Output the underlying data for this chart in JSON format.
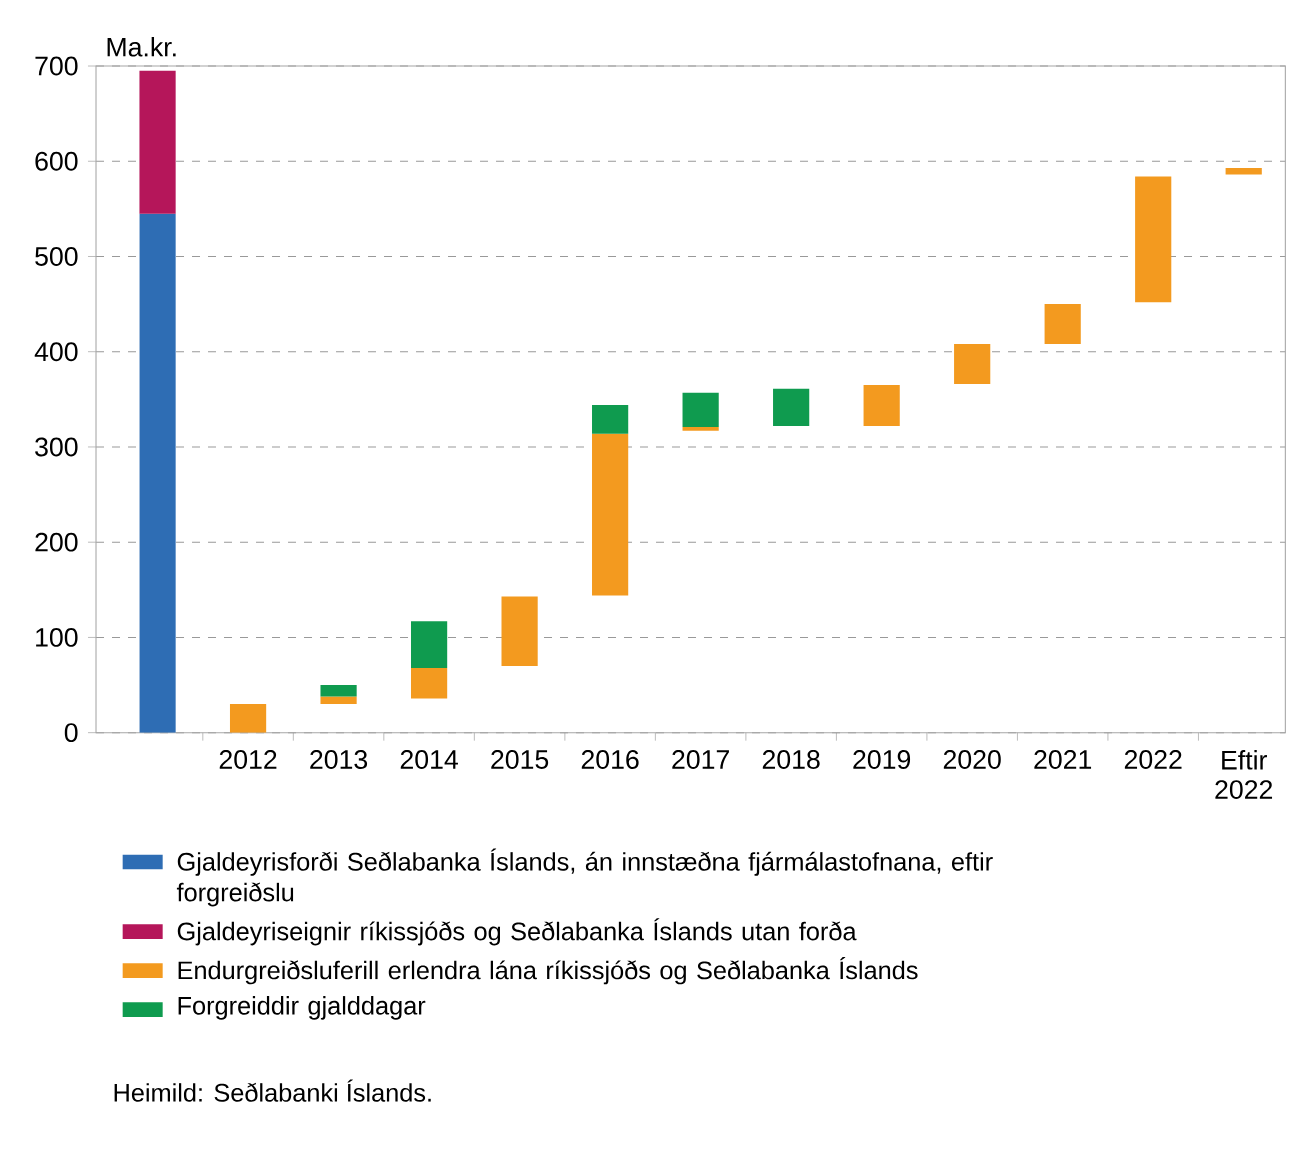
{
  "chart_data": {
    "type": "bar",
    "ylabel": "Ma.kr.",
    "categories": [
      null,
      "2012",
      "2013",
      "2014",
      "2015",
      "2016",
      "2017",
      "2018",
      "2019",
      "2020",
      "2021",
      "2022",
      "Eftir 2022"
    ],
    "series": [
      {
        "name": "Gjaldeyrisforði Seðlabanka Íslands, án innstæðna fjármálastofnana, eftir forgreiðslu",
        "color": "#2e6db4",
        "values": [
          545,
          null,
          null,
          null,
          null,
          null,
          null,
          null,
          null,
          null,
          null,
          null,
          null
        ],
        "base": [
          0,
          null,
          null,
          null,
          null,
          null,
          null,
          null,
          null,
          null,
          null,
          null,
          null
        ]
      },
      {
        "name": "Gjaldeyriseignir ríkissjóðs og Seðlabanka Íslands utan forða",
        "color": "#b5165a",
        "values": [
          150,
          null,
          null,
          null,
          null,
          null,
          null,
          null,
          null,
          null,
          null,
          null,
          null
        ],
        "base": [
          545,
          null,
          null,
          null,
          null,
          null,
          null,
          null,
          null,
          null,
          null,
          null,
          null
        ]
      },
      {
        "name": "Endurgreiðsluferill erlendra lána ríkissjóðs og Seðlabanka Íslands",
        "color": "#f39a1f",
        "values": [
          null,
          30,
          8,
          32,
          73,
          170,
          4,
          null,
          43,
          42,
          42,
          132,
          7
        ],
        "base": [
          null,
          0,
          30,
          36,
          70,
          144,
          317,
          null,
          322,
          366,
          408,
          452,
          586
        ]
      },
      {
        "name": "Forgreiddir gjalddagar",
        "color": "#0f9b4f",
        "values": [
          null,
          null,
          12,
          49,
          null,
          30,
          36,
          39,
          null,
          null,
          null,
          null,
          null
        ],
        "base": [
          null,
          null,
          38,
          68,
          null,
          314,
          321,
          322,
          null,
          null,
          null,
          null,
          null
        ]
      }
    ],
    "ylim": [
      0,
      700
    ],
    "yticks": [
      0,
      100,
      200,
      300,
      400,
      500,
      600,
      700
    ],
    "grid": "y",
    "legend": "bottom",
    "annotations": [
      "Heimild: Seðlabanki Íslands."
    ]
  }
}
